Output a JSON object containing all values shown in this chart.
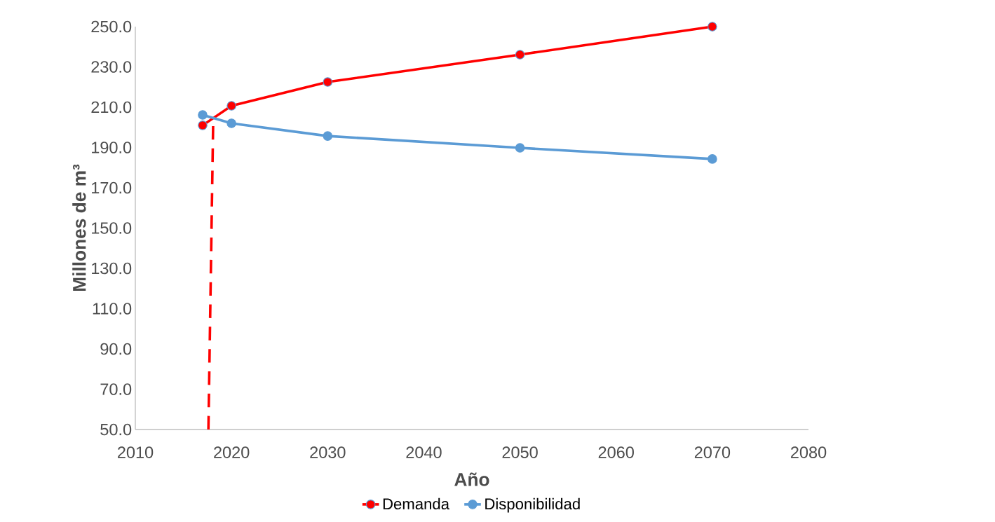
{
  "chart_data": {
    "type": "line",
    "xlabel": "Año",
    "ylabel": "Millones de m³",
    "series": [
      {
        "name": "Demanda",
        "color": "#ff0000",
        "x": [
          2017,
          2020,
          2030,
          2050,
          2070
        ],
        "values": [
          201.0,
          210.7,
          222.5,
          236.1,
          250.0
        ],
        "marker": "circle"
      },
      {
        "name": "Disponibilidad",
        "color": "#5b9bd5",
        "x": [
          2017,
          2020,
          2030,
          2050,
          2070
        ],
        "values": [
          206.2,
          202.0,
          195.7,
          189.8,
          184.3
        ],
        "marker": "circle"
      },
      {
        "color": "#ff0000",
        "x": [
          2017.6,
          2018.1
        ],
        "values": [
          50,
          204.1
        ],
        "marker": "none",
        "line_style": "dashed"
      }
    ],
    "xlim": [
      2010,
      2080
    ],
    "ylim": [
      50,
      250
    ],
    "xticks": [
      2010,
      2020,
      2030,
      2040,
      2050,
      2060,
      2070,
      2080
    ],
    "yticks": [
      {
        "value": 50,
        "label": "50.0"
      },
      {
        "value": 70,
        "label": "70.0"
      },
      {
        "value": 90,
        "label": "90.0"
      },
      {
        "value": 110,
        "label": "110.0"
      },
      {
        "value": 130,
        "label": "130.0"
      },
      {
        "value": 150,
        "label": "150.0"
      },
      {
        "value": 170,
        "label": "170.0"
      },
      {
        "value": 190,
        "label": "190.0"
      },
      {
        "value": 210,
        "label": "210.0"
      },
      {
        "value": 230,
        "label": "230.0"
      },
      {
        "value": 250,
        "label": "250.0"
      }
    ],
    "grid": false,
    "legend": "bottom"
  }
}
